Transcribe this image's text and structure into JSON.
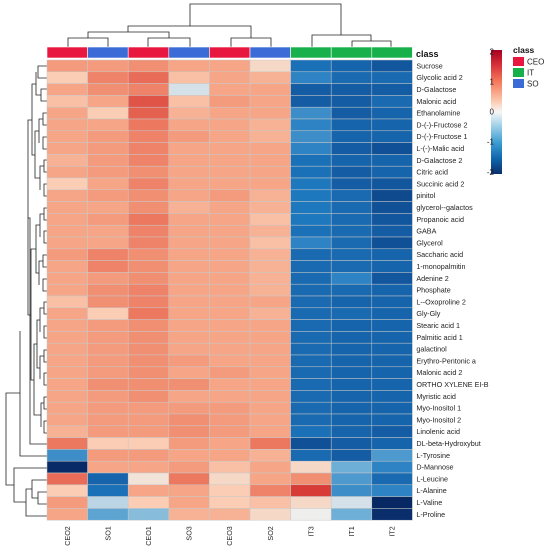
{
  "chart_data": {
    "type": "heatmap",
    "class_annotation_label": "class",
    "columns": [
      "CEO2",
      "SO1",
      "CEO1",
      "SO3",
      "CEO3",
      "SO2",
      "IT3",
      "IT1",
      "IT2"
    ],
    "column_classes": [
      "CEO",
      "SO",
      "CEO",
      "SO",
      "CEO",
      "SO",
      "IT",
      "IT",
      "IT"
    ],
    "class_legend": {
      "title": "class",
      "entries": [
        {
          "label": "CEO",
          "color": "#e8173f"
        },
        {
          "label": "IT",
          "color": "#17b04a"
        },
        {
          "label": "SO",
          "color": "#3a6bd6"
        }
      ]
    },
    "colorbar": {
      "ticks": [
        "2",
        "1",
        "0",
        "-1",
        "-2"
      ],
      "min": -2,
      "max": 2,
      "low_color": "#0a2f6b",
      "mid_color": "#f7f7f7",
      "high_color": "#a50021"
    },
    "rows": [
      "Sucrose",
      "Glycolic acid  2",
      "D-Galactose",
      "Malonic acid",
      "Ethanolamine",
      "D-(-)-Fructose 2",
      "D-(-)-Fructose  1",
      "L-(-)-Malic acid",
      "D-Galactose 2",
      "Citric acid",
      "Succinic acid  2",
      "pinitol",
      "glycerol--galactos",
      "Propanoic acid",
      "GABA",
      "Glycerol",
      "Saccharic acid",
      "1-monopalmitin",
      "Adenine  2",
      "Phosphate",
      "L--Oxoproline  2",
      "Gly-Gly",
      "Stearic acid  1",
      "Palmitic acid  1",
      "galactinol",
      "Erythro-Pentonic a",
      "Malonic acid  2",
      "ORTHO XYLENE EI-B",
      "Myristic acid",
      "Myo-Inositol  1",
      "Myo-Inositol  2",
      "Linolenic acid",
      "DL-beta-Hydroxybut",
      "L-Tyrosine",
      "D-Mannose",
      "L-Leucine",
      "L-Alanine",
      "L-Valine",
      "L-Proline"
    ],
    "values": [
      [
        0.7,
        0.7,
        0.8,
        0.6,
        0.6,
        0.2,
        -1.1,
        -1.3,
        -1.5
      ],
      [
        0.3,
        0.9,
        1.1,
        0.4,
        0.6,
        0.5,
        -0.9,
        -1.2,
        -1.2
      ],
      [
        0.6,
        0.8,
        0.9,
        -0.1,
        0.6,
        0.6,
        -1.4,
        -1.4,
        -1.4
      ],
      [
        0.4,
        0.6,
        1.3,
        0.4,
        0.7,
        0.6,
        -1.4,
        -1.4,
        -1.2
      ],
      [
        0.6,
        0.3,
        1.2,
        0.5,
        0.6,
        0.6,
        -0.8,
        -1.4,
        -1.3
      ],
      [
        0.6,
        0.6,
        1.0,
        0.6,
        0.6,
        0.5,
        -0.9,
        -1.3,
        -1.3
      ],
      [
        0.6,
        0.7,
        0.9,
        0.7,
        0.6,
        0.5,
        -0.8,
        -1.3,
        -1.3
      ],
      [
        0.6,
        0.7,
        0.9,
        0.6,
        0.6,
        0.6,
        -0.9,
        -1.4,
        -1.6
      ],
      [
        0.5,
        0.7,
        0.9,
        0.6,
        0.6,
        0.6,
        -1.1,
        -1.3,
        -1.3
      ],
      [
        0.6,
        0.7,
        0.8,
        0.6,
        0.6,
        0.6,
        -1.1,
        -1.4,
        -1.3
      ],
      [
        0.3,
        0.6,
        0.9,
        0.6,
        0.6,
        0.6,
        -1.0,
        -1.4,
        -1.5
      ],
      [
        0.6,
        0.7,
        0.8,
        0.6,
        0.7,
        0.5,
        -1.0,
        -1.2,
        -1.7
      ],
      [
        0.6,
        0.6,
        0.8,
        0.5,
        0.6,
        0.5,
        -1.0,
        -1.2,
        -1.6
      ],
      [
        0.6,
        0.7,
        1.0,
        0.6,
        0.6,
        0.4,
        -1.0,
        -1.2,
        -1.5
      ],
      [
        0.6,
        0.6,
        0.9,
        0.6,
        0.6,
        0.5,
        -1.1,
        -1.2,
        -1.4
      ],
      [
        0.6,
        0.6,
        0.9,
        0.6,
        0.6,
        0.4,
        -0.9,
        -1.2,
        -1.6
      ],
      [
        0.7,
        0.9,
        0.8,
        0.6,
        0.6,
        0.5,
        -1.2,
        -1.2,
        -1.3
      ],
      [
        0.6,
        0.9,
        0.8,
        0.6,
        0.6,
        0.5,
        -1.2,
        -1.2,
        -1.3
      ],
      [
        0.6,
        0.7,
        0.8,
        0.6,
        0.6,
        0.5,
        -1.2,
        -0.9,
        -1.5
      ],
      [
        0.6,
        0.8,
        0.9,
        0.6,
        0.6,
        0.5,
        -1.2,
        -1.2,
        -1.3
      ],
      [
        0.4,
        0.8,
        0.9,
        0.6,
        0.6,
        0.6,
        -1.2,
        -1.3,
        -1.3
      ],
      [
        0.6,
        0.3,
        1.0,
        0.6,
        0.6,
        0.5,
        -1.2,
        -1.2,
        -1.3
      ],
      [
        0.6,
        0.7,
        0.8,
        0.6,
        0.6,
        0.6,
        -1.2,
        -1.3,
        -1.3
      ],
      [
        0.6,
        0.7,
        0.8,
        0.6,
        0.6,
        0.6,
        -1.2,
        -1.3,
        -1.3
      ],
      [
        0.6,
        0.7,
        0.8,
        0.6,
        0.6,
        0.6,
        -1.2,
        -1.3,
        -1.3
      ],
      [
        0.6,
        0.7,
        0.8,
        0.7,
        0.6,
        0.6,
        -1.2,
        -1.3,
        -1.3
      ],
      [
        0.6,
        0.7,
        0.8,
        0.6,
        0.7,
        0.6,
        -1.2,
        -1.3,
        -1.3
      ],
      [
        0.6,
        0.8,
        0.8,
        0.8,
        0.6,
        0.6,
        -1.2,
        -1.3,
        -1.3
      ],
      [
        0.6,
        0.7,
        0.8,
        0.6,
        0.6,
        0.6,
        -1.2,
        -1.3,
        -1.3
      ],
      [
        0.6,
        0.7,
        0.7,
        0.7,
        0.7,
        0.6,
        -1.2,
        -1.3,
        -1.3
      ],
      [
        0.6,
        0.7,
        0.7,
        0.8,
        0.7,
        0.6,
        -1.2,
        -1.3,
        -1.3
      ],
      [
        0.5,
        0.7,
        0.7,
        0.8,
        0.7,
        0.6,
        -1.1,
        -1.3,
        -1.4
      ],
      [
        1.0,
        0.3,
        0.3,
        0.7,
        0.6,
        1.0,
        -1.6,
        -1.4,
        -1.3
      ],
      [
        -0.8,
        0.7,
        0.7,
        0.6,
        0.6,
        0.5,
        -1.2,
        -1.4,
        -0.7
      ],
      [
        -2.4,
        0.6,
        0.6,
        0.7,
        0.4,
        0.6,
        0.2,
        -0.5,
        -0.9
      ],
      [
        1.1,
        -1.3,
        0.1,
        1.0,
        0.2,
        0.6,
        0.8,
        -0.7,
        -1.2
      ],
      [
        0.3,
        -1.1,
        0.6,
        0.6,
        0.3,
        0.9,
        1.5,
        -0.8,
        -0.9
      ],
      [
        0.7,
        -0.2,
        0.3,
        0.6,
        0.3,
        0.4,
        0.2,
        -0.1,
        -2.5
      ],
      [
        0.6,
        -0.6,
        -0.4,
        0.5,
        0.5,
        0.2,
        0.0,
        -0.5,
        -2.3
      ]
    ]
  }
}
